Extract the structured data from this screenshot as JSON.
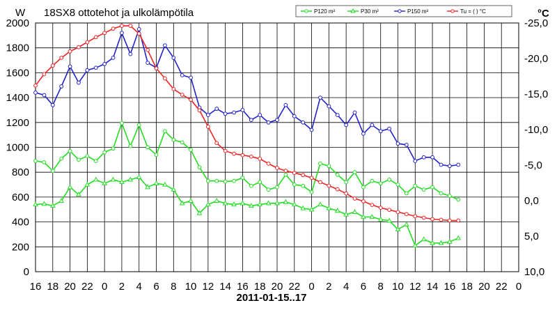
{
  "chart_data": {
    "type": "line",
    "title": "18SX8 ottotehot ja ulkolämpötila",
    "left_unit": "W",
    "right_unit": "°C",
    "xlabel": "2011-01-15..17",
    "x_tick_labels": [
      "16",
      "18",
      "20",
      "22",
      "0",
      "2",
      "4",
      "6",
      "8",
      "10",
      "12",
      "14",
      "16",
      "18",
      "20",
      "22",
      "0",
      "2",
      "4",
      "6",
      "8",
      "10",
      "12",
      "14",
      "16",
      "18",
      "20",
      "22",
      "0"
    ],
    "x_range": [
      16,
      72
    ],
    "ylim_left": [
      0,
      2000
    ],
    "y_left_ticks": [
      0,
      200,
      400,
      600,
      800,
      1000,
      1200,
      1400,
      1600,
      1800,
      2000
    ],
    "ylim_right": [
      10,
      -25
    ],
    "y_right_ticks": [
      10,
      5,
      0,
      -5,
      -10,
      -15,
      -20,
      -25
    ],
    "y_right_tick_labels": [
      "10,0",
      "5,0",
      "0,0",
      "-5,0",
      "-10,0",
      "-15,0",
      "-20,0",
      "-25,0"
    ],
    "legend_position": "top-right",
    "grid": true,
    "series": [
      {
        "name": "P120 m²",
        "axis": "left",
        "color": "#22dd22",
        "marker": "circle",
        "x": [
          16,
          17,
          18,
          19,
          20,
          21,
          22,
          23,
          24,
          25,
          26,
          27,
          28,
          29,
          30,
          31,
          32,
          33,
          34,
          35,
          36,
          37,
          38,
          39,
          40,
          41,
          42,
          43,
          44,
          45,
          46,
          47,
          48,
          49,
          50,
          51,
          52,
          53,
          54,
          55,
          56,
          57,
          58,
          59,
          60,
          61,
          62,
          63,
          64,
          65
        ],
        "values": [
          890,
          880,
          810,
          910,
          970,
          900,
          930,
          890,
          960,
          990,
          1195,
          1010,
          1180,
          1000,
          940,
          1130,
          1060,
          1040,
          980,
          840,
          730,
          730,
          725,
          730,
          755,
          690,
          720,
          660,
          680,
          780,
          700,
          690,
          640,
          870,
          850,
          780,
          720,
          800,
          680,
          730,
          710,
          740,
          700,
          630,
          690,
          660,
          680,
          630,
          610,
          580
        ]
      },
      {
        "name": "P30 m²",
        "axis": "left",
        "color": "#22dd22",
        "marker": "triangle",
        "x": [
          16,
          17,
          18,
          19,
          20,
          21,
          22,
          23,
          24,
          25,
          26,
          27,
          28,
          29,
          30,
          31,
          32,
          33,
          34,
          35,
          36,
          37,
          38,
          39,
          40,
          41,
          42,
          43,
          44,
          45,
          46,
          47,
          48,
          49,
          50,
          51,
          52,
          53,
          54,
          55,
          56,
          57,
          58,
          59,
          60,
          61,
          62,
          63,
          64,
          65
        ],
        "values": [
          540,
          545,
          530,
          570,
          680,
          620,
          700,
          740,
          710,
          740,
          720,
          740,
          760,
          680,
          710,
          700,
          660,
          550,
          570,
          470,
          540,
          570,
          550,
          540,
          550,
          530,
          540,
          550,
          550,
          560,
          540,
          510,
          500,
          540,
          510,
          490,
          460,
          480,
          440,
          440,
          420,
          410,
          340,
          380,
          210,
          260,
          230,
          230,
          240,
          270
        ]
      },
      {
        "name": "P150 m²",
        "axis": "left",
        "color": "#2222cc",
        "marker": "circle",
        "x": [
          16,
          17,
          18,
          19,
          20,
          21,
          22,
          23,
          24,
          25,
          26,
          27,
          28,
          29,
          30,
          31,
          32,
          33,
          34,
          35,
          36,
          37,
          38,
          39,
          40,
          41,
          42,
          43,
          44,
          45,
          46,
          47,
          48,
          49,
          50,
          51,
          52,
          53,
          54,
          55,
          56,
          57,
          58,
          59,
          60,
          61,
          62,
          63,
          64,
          65
        ],
        "values": [
          1440,
          1420,
          1340,
          1490,
          1650,
          1520,
          1620,
          1640,
          1670,
          1720,
          1920,
          1750,
          1950,
          1680,
          1640,
          1820,
          1720,
          1580,
          1560,
          1320,
          1260,
          1310,
          1270,
          1280,
          1300,
          1220,
          1260,
          1200,
          1220,
          1340,
          1250,
          1200,
          1140,
          1400,
          1330,
          1260,
          1180,
          1280,
          1110,
          1180,
          1130,
          1150,
          1030,
          1020,
          890,
          920,
          920,
          860,
          850,
          860
        ]
      },
      {
        "name": "Tu = ( ) °C",
        "axis": "right",
        "color": "#ee2222",
        "marker": "circle",
        "x": [
          16,
          17,
          18,
          19,
          20,
          21,
          22,
          23,
          24,
          25,
          26,
          27,
          28,
          29,
          30,
          31,
          32,
          33,
          34,
          35,
          36,
          37,
          38,
          39,
          40,
          41,
          42,
          43,
          44,
          45,
          46,
          47,
          48,
          49,
          50,
          51,
          52,
          53,
          54,
          55,
          56,
          57,
          58,
          59,
          60,
          61,
          62,
          63,
          64,
          65
        ],
        "values": [
          -16.2,
          -17.8,
          -19,
          -20.1,
          -21,
          -21.6,
          -22.3,
          -23,
          -23.6,
          -24.2,
          -24.6,
          -24.6,
          -23.5,
          -21.2,
          -18.6,
          -17.2,
          -15.7,
          -14.9,
          -14.2,
          -12.7,
          -10.4,
          -8.1,
          -7,
          -6.6,
          -6.4,
          -6.2,
          -5.9,
          -5.2,
          -4.6,
          -4.2,
          -3.9,
          -3.6,
          -3.2,
          -2.6,
          -2.1,
          -1.6,
          -1,
          -0.3,
          0.1,
          0.6,
          1,
          1.3,
          1.6,
          1.9,
          2.2,
          2.4,
          2.6,
          2.7,
          2.8,
          2.8
        ]
      }
    ]
  }
}
